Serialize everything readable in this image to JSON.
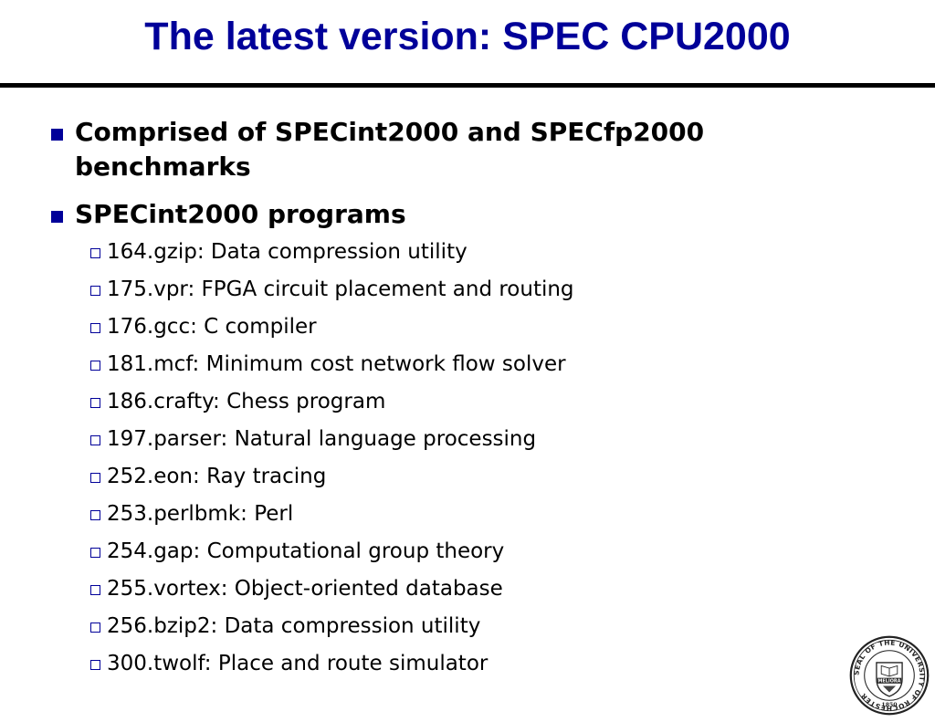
{
  "title": "The latest version: SPEC CPU2000",
  "bullets": [
    {
      "text": "Comprised of SPECint2000 and SPECfp2000 benchmarks"
    },
    {
      "text": "SPECint2000 programs",
      "items": [
        "164.gzip: Data compression utility",
        "175.vpr: FPGA circuit placement and routing",
        "176.gcc: C compiler",
        "181.mcf: Minimum cost network flow solver",
        "186.crafty: Chess program",
        "197.parser: Natural language processing",
        "252.eon: Ray tracing",
        "253.perlbmk: Perl",
        "254.gap: Computational group theory",
        "255.vortex: Object-oriented database",
        "256.bzip2: Data compression utility",
        "300.twolf: Place and route simulator"
      ]
    }
  ],
  "seal": {
    "icon": "university-seal-icon",
    "ring_text": "SEAL OF THE UNIVERSITY OF ROCHESTER",
    "motto": "MELIORA",
    "year": "1850"
  },
  "colors": {
    "title": "#000099",
    "bullet": "#000099",
    "rule": "#000000"
  }
}
